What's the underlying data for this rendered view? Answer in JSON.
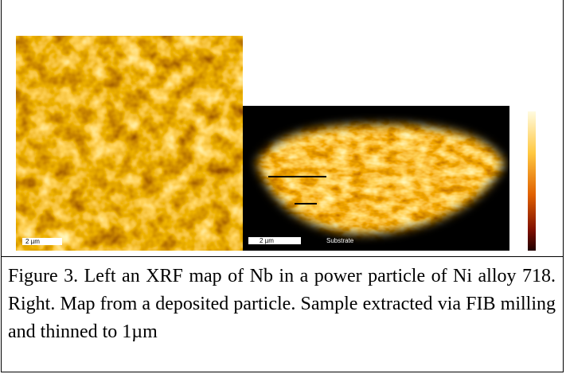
{
  "figure": {
    "left_scale_bar": "2 µm",
    "right_scale_bar": "2 µm",
    "right_label": "Substrate"
  },
  "caption": "Figure 3. Left an XRF map of Nb in a power particle of Ni alloy 718. Right. Map from a deposited particle. Sample extracted via FIB milling and thinned to 1µm"
}
